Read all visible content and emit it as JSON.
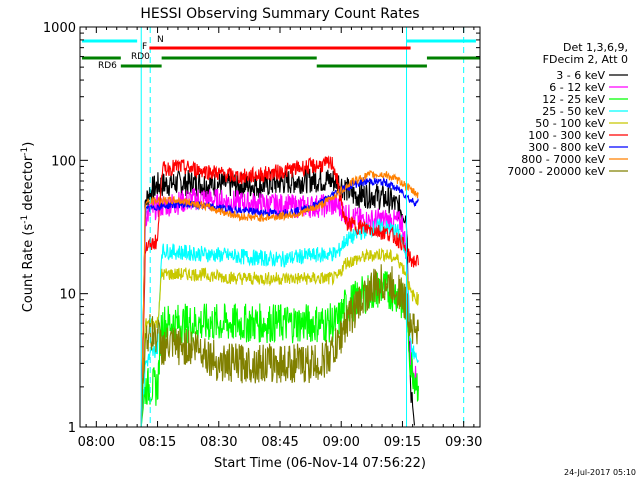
{
  "chart_data": {
    "type": "line",
    "title": "HESSI Observing Summary Count Rates",
    "xlabel": "Start Time (06-Nov-14 07:56:22)",
    "ylabel_main": "Count Rate (s",
    "ylabel_sup1": "-1",
    "ylabel_mid": " detector",
    "ylabel_sup2": "-1",
    "ylabel_end": ")",
    "ylog": true,
    "ylim": [
      1,
      1000
    ],
    "xlim_min": [
      476,
      574
    ],
    "x_ticks": [
      {
        "min": 480,
        "label": "08:00"
      },
      {
        "min": 495,
        "label": "08:15"
      },
      {
        "min": 510,
        "label": "08:30"
      },
      {
        "min": 525,
        "label": "08:45"
      },
      {
        "min": 540,
        "label": "09:00"
      },
      {
        "min": 555,
        "label": "09:15"
      },
      {
        "min": 570,
        "label": "09:30"
      }
    ],
    "y_ticks": [
      {
        "v": 1,
        "label": "1"
      },
      {
        "v": 10,
        "label": "10"
      },
      {
        "v": 100,
        "label": "100"
      },
      {
        "v": 1000,
        "label": "1000"
      }
    ],
    "legend_header": [
      "Det 1,3,6,9,",
      "FDecim 2, Att 0"
    ],
    "series": [
      {
        "name": "3 - 6 keV",
        "color": "#000000",
        "level": 70,
        "noise": 0.1,
        "points": [
          [
            491,
            1
          ],
          [
            492,
            48
          ],
          [
            493,
            58
          ],
          [
            495,
            65
          ],
          [
            500,
            68
          ],
          [
            510,
            66
          ],
          [
            520,
            65
          ],
          [
            528,
            70
          ],
          [
            534,
            72
          ],
          [
            539,
            70
          ],
          [
            543,
            55
          ],
          [
            548,
            55
          ],
          [
            552,
            50
          ],
          [
            555,
            42
          ],
          [
            556,
            38
          ],
          [
            557,
            2
          ],
          [
            558,
            1
          ]
        ]
      },
      {
        "name": "6 - 12 keV",
        "color": "#ff00ff",
        "level": 50,
        "noise": 0.09,
        "points": [
          [
            491,
            1
          ],
          [
            492,
            38
          ],
          [
            495,
            45
          ],
          [
            500,
            48
          ],
          [
            505,
            52
          ],
          [
            510,
            50
          ],
          [
            520,
            47
          ],
          [
            530,
            45
          ],
          [
            539,
            46
          ],
          [
            542,
            38
          ],
          [
            546,
            35
          ],
          [
            550,
            36
          ],
          [
            555,
            34
          ],
          [
            556,
            20
          ],
          [
            557,
            3
          ],
          [
            559,
            2
          ]
        ]
      },
      {
        "name": "12 - 25 keV",
        "color": "#00ff00",
        "level": 5,
        "noise": 0.15,
        "points": [
          [
            491,
            1
          ],
          [
            492,
            2
          ],
          [
            495,
            2
          ],
          [
            496,
            6
          ],
          [
            500,
            6
          ],
          [
            510,
            6
          ],
          [
            520,
            6
          ],
          [
            530,
            6
          ],
          [
            539,
            6
          ],
          [
            541,
            8
          ],
          [
            546,
            10
          ],
          [
            550,
            11
          ],
          [
            554,
            10
          ],
          [
            556,
            7
          ],
          [
            557,
            3
          ],
          [
            559,
            2
          ]
        ]
      },
      {
        "name": "25 - 50 keV",
        "color": "#00ffff",
        "level": 20,
        "noise": 0.06,
        "points": [
          [
            491,
            1
          ],
          [
            492,
            3
          ],
          [
            495,
            4
          ],
          [
            496,
            21
          ],
          [
            505,
            20
          ],
          [
            515,
            19
          ],
          [
            525,
            18
          ],
          [
            530,
            19
          ],
          [
            539,
            20
          ],
          [
            541,
            25
          ],
          [
            546,
            30
          ],
          [
            550,
            32
          ],
          [
            554,
            29
          ],
          [
            556,
            20
          ],
          [
            557,
            4
          ],
          [
            559,
            3
          ]
        ]
      },
      {
        "name": "50 - 100 keV",
        "color": "#c8c800",
        "level": 13,
        "noise": 0.05,
        "points": [
          [
            491,
            1
          ],
          [
            492,
            6
          ],
          [
            495,
            6
          ],
          [
            496,
            14
          ],
          [
            505,
            14
          ],
          [
            515,
            13
          ],
          [
            525,
            13
          ],
          [
            530,
            13
          ],
          [
            539,
            13
          ],
          [
            541,
            17
          ],
          [
            546,
            19
          ],
          [
            550,
            20
          ],
          [
            554,
            18
          ],
          [
            556,
            14
          ],
          [
            557,
            10
          ],
          [
            559,
            9
          ]
        ]
      },
      {
        "name": "100 - 300 keV",
        "color": "#ff0000",
        "level": 80,
        "noise": 0.06,
        "points": [
          [
            491,
            1
          ],
          [
            492,
            22
          ],
          [
            495,
            25
          ],
          [
            496,
            85
          ],
          [
            500,
            90
          ],
          [
            505,
            85
          ],
          [
            510,
            80
          ],
          [
            515,
            75
          ],
          [
            520,
            78
          ],
          [
            525,
            82
          ],
          [
            530,
            88
          ],
          [
            535,
            92
          ],
          [
            538,
            95
          ],
          [
            539,
            70
          ],
          [
            541,
            34
          ],
          [
            544,
            32
          ],
          [
            548,
            30
          ],
          [
            552,
            28
          ],
          [
            555,
            24
          ],
          [
            556,
            20
          ],
          [
            557,
            18
          ],
          [
            559,
            17
          ]
        ]
      },
      {
        "name": "300 - 800 keV",
        "color": "#0000ff",
        "level": 45,
        "noise": 0.03,
        "points": [
          [
            491,
            1
          ],
          [
            492,
            42
          ],
          [
            495,
            45
          ],
          [
            500,
            47
          ],
          [
            505,
            46
          ],
          [
            510,
            44
          ],
          [
            515,
            42
          ],
          [
            520,
            41
          ],
          [
            525,
            40
          ],
          [
            530,
            42
          ],
          [
            535,
            48
          ],
          [
            539,
            58
          ],
          [
            543,
            66
          ],
          [
            547,
            70
          ],
          [
            551,
            68
          ],
          [
            555,
            58
          ],
          [
            557,
            50
          ],
          [
            559,
            48
          ]
        ]
      },
      {
        "name": "800 - 7000 keV",
        "color": "#ff8000",
        "level": 40,
        "noise": 0.03,
        "points": [
          [
            491,
            1
          ],
          [
            492,
            48
          ],
          [
            495,
            50
          ],
          [
            500,
            50
          ],
          [
            505,
            47
          ],
          [
            510,
            42
          ],
          [
            515,
            38
          ],
          [
            520,
            37
          ],
          [
            525,
            38
          ],
          [
            530,
            40
          ],
          [
            535,
            46
          ],
          [
            539,
            56
          ],
          [
            543,
            70
          ],
          [
            547,
            78
          ],
          [
            551,
            78
          ],
          [
            555,
            68
          ],
          [
            557,
            60
          ],
          [
            559,
            55
          ]
        ]
      },
      {
        "name": "7000 - 20000 keV",
        "color": "#808000",
        "level": 4,
        "noise": 0.15,
        "points": [
          [
            491,
            1
          ],
          [
            492,
            5
          ],
          [
            495,
            5
          ],
          [
            496,
            4
          ],
          [
            500,
            4
          ],
          [
            505,
            4
          ],
          [
            510,
            3
          ],
          [
            515,
            3
          ],
          [
            520,
            3
          ],
          [
            525,
            3
          ],
          [
            530,
            3
          ],
          [
            535,
            3
          ],
          [
            539,
            4
          ],
          [
            541,
            6
          ],
          [
            546,
            10
          ],
          [
            550,
            12
          ],
          [
            554,
            11
          ],
          [
            556,
            8
          ],
          [
            557,
            6
          ],
          [
            559,
            5
          ]
        ]
      }
    ],
    "status_bars": [
      {
        "label": "N",
        "color": "#00ffff",
        "segments": [
          [
            476.5,
            490
          ],
          [
            556,
            573
          ]
        ]
      },
      {
        "label": "F",
        "color": "#ff0000",
        "segments": [
          [
            493,
            557
          ]
        ]
      },
      {
        "label": "RD0",
        "color": "#008000",
        "segments": [
          [
            476.5,
            486
          ],
          [
            496,
            534
          ],
          [
            561,
            574
          ]
        ]
      },
      {
        "label": "RD6",
        "color": "#008000",
        "segments": [
          [
            486,
            496
          ],
          [
            534,
            561
          ]
        ]
      }
    ],
    "vlines": [
      {
        "min": 491,
        "color": "#00ffff",
        "style": "solid"
      },
      {
        "min": 493.2,
        "color": "#00ffff",
        "style": "dashed"
      },
      {
        "min": 556,
        "color": "#00ffff",
        "style": "solid"
      },
      {
        "min": 570,
        "color": "#00ffff",
        "style": "dashed"
      }
    ],
    "timestamp": "24-Jul-2017 05:10"
  }
}
